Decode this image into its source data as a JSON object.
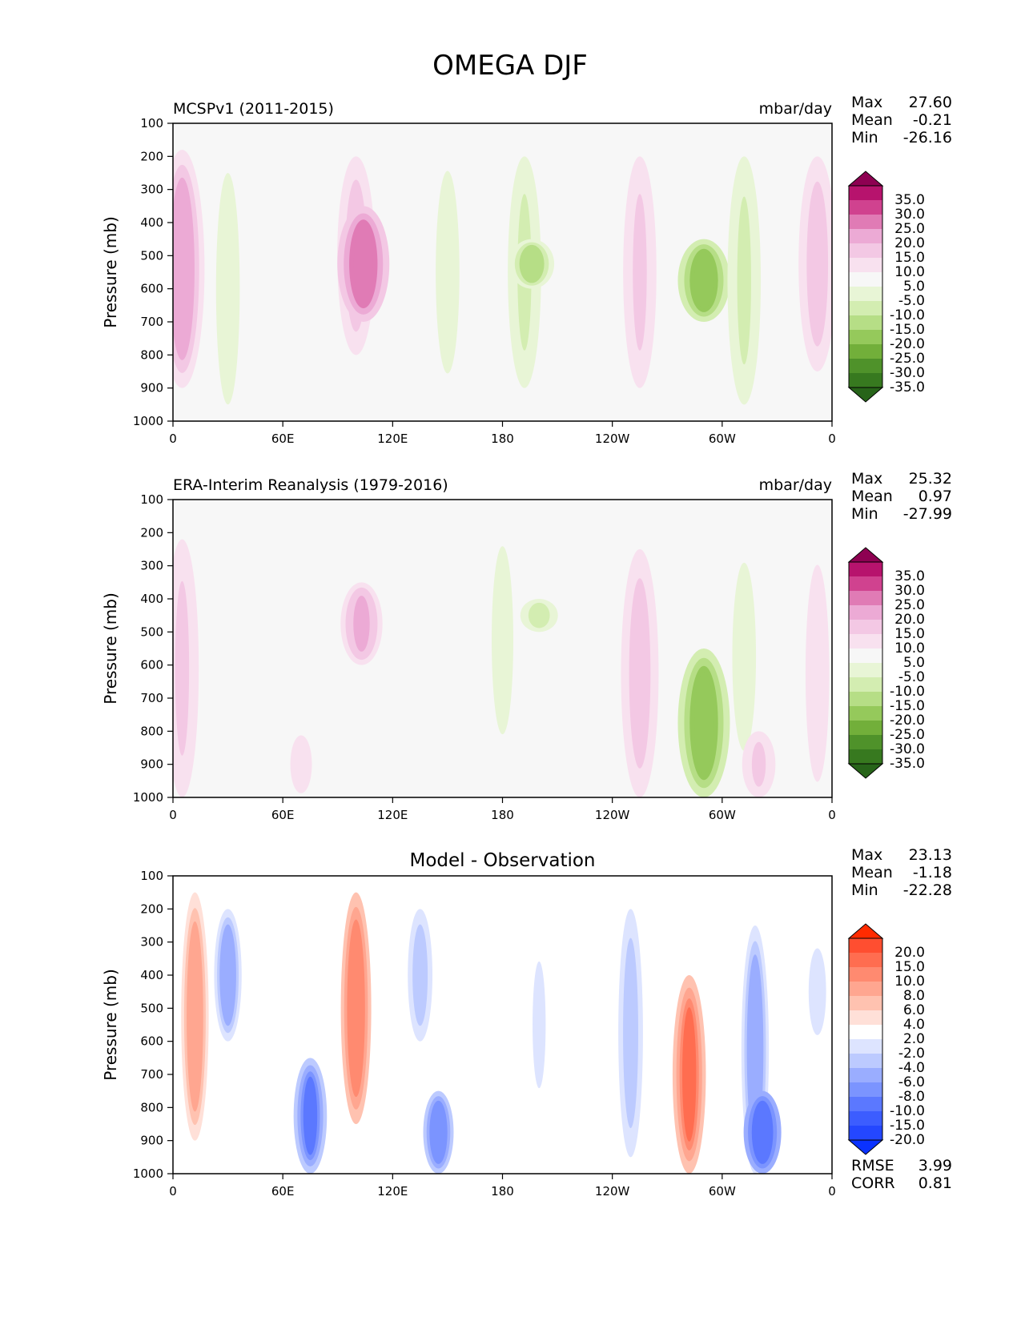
{
  "figure": {
    "title": "OMEGA DJF"
  },
  "chart_data": [
    {
      "type": "heatmap",
      "plot_kind": "filled-contour",
      "title_left": "MCSPv1 (2011-2015)",
      "title_right": "mbar/day",
      "ylabel": "Pressure (mb)",
      "x_ticks": [
        "0",
        "60E",
        "120E",
        "180",
        "120W",
        "60W",
        "0"
      ],
      "y_ticks": [
        "100",
        "200",
        "300",
        "400",
        "500",
        "600",
        "700",
        "800",
        "900",
        "1000"
      ],
      "ylim": [
        1000,
        100
      ],
      "xlim": [
        0,
        360
      ],
      "stats": [
        {
          "label": "Max",
          "value": "27.60"
        },
        {
          "label": "Mean",
          "value": "-0.21"
        },
        {
          "label": "Min",
          "value": "-26.16"
        }
      ],
      "colorbar": {
        "labels": [
          "35.0",
          "30.0",
          "25.0",
          "20.0",
          "15.0",
          "10.0",
          "5.0",
          "-5.0",
          "-10.0",
          "-15.0",
          "-20.0",
          "-25.0",
          "-30.0",
          "-35.0"
        ],
        "colors": [
          "#8e0152",
          "#b7136d",
          "#d0428f",
          "#e07bb5",
          "#ecaad5",
          "#f3c8e4",
          "#f8e1ef",
          "#f7f7f7",
          "#e8f5d6",
          "#d3edb1",
          "#b6de86",
          "#95c95b",
          "#72af3a",
          "#4f922a",
          "#37791f",
          "#276419"
        ],
        "extend": "both"
      },
      "features": [
        {
          "lon": 5,
          "p_top": 180,
          "p_bot": 900,
          "value": 20
        },
        {
          "lon": 30,
          "p_top": 200,
          "p_bot": 1000,
          "value": -10
        },
        {
          "lon": 100,
          "p_top": 200,
          "p_bot": 800,
          "value": 15
        },
        {
          "lon": 104,
          "p_top": 350,
          "p_bot": 700,
          "value": 25
        },
        {
          "lon": 150,
          "p_top": 200,
          "p_bot": 900,
          "value": -10
        },
        {
          "lon": 192,
          "p_top": 200,
          "p_bot": 900,
          "value": -12
        },
        {
          "lon": 196,
          "p_top": 450,
          "p_bot": 600,
          "value": -20
        },
        {
          "lon": 255,
          "p_top": 200,
          "p_bot": 900,
          "value": 12
        },
        {
          "lon": 290,
          "p_top": 450,
          "p_bot": 700,
          "value": -25
        },
        {
          "lon": 312,
          "p_top": 200,
          "p_bot": 950,
          "value": -12
        },
        {
          "lon": 352,
          "p_top": 200,
          "p_bot": 850,
          "value": 15
        }
      ]
    },
    {
      "type": "heatmap",
      "plot_kind": "filled-contour",
      "title_left": "ERA-Interim Reanalysis (1979-2016)",
      "title_right": "mbar/day",
      "ylabel": "Pressure (mb)",
      "x_ticks": [
        "0",
        "60E",
        "120E",
        "180",
        "120W",
        "60W",
        "0"
      ],
      "y_ticks": [
        "100",
        "200",
        "300",
        "400",
        "500",
        "600",
        "700",
        "800",
        "900",
        "1000"
      ],
      "ylim": [
        1000,
        100
      ],
      "xlim": [
        0,
        360
      ],
      "stats": [
        {
          "label": "Max",
          "value": "25.32"
        },
        {
          "label": "Mean",
          "value": "0.97"
        },
        {
          "label": "Min",
          "value": "-27.99"
        }
      ],
      "colorbar": {
        "labels": [
          "35.0",
          "30.0",
          "25.0",
          "20.0",
          "15.0",
          "10.0",
          "5.0",
          "-5.0",
          "-10.0",
          "-15.0",
          "-20.0",
          "-25.0",
          "-30.0",
          "-35.0"
        ],
        "colors": [
          "#8e0152",
          "#b7136d",
          "#d0428f",
          "#e07bb5",
          "#ecaad5",
          "#f3c8e4",
          "#f8e1ef",
          "#f7f7f7",
          "#e8f5d6",
          "#d3edb1",
          "#b6de86",
          "#95c95b",
          "#72af3a",
          "#4f922a",
          "#37791f",
          "#276419"
        ],
        "extend": "both"
      },
      "features": [
        {
          "lon": 5,
          "p_top": 220,
          "p_bot": 1000,
          "value": 12
        },
        {
          "lon": 70,
          "p_top": 800,
          "p_bot": 1000,
          "value": 8
        },
        {
          "lon": 103,
          "p_top": 350,
          "p_bot": 600,
          "value": 18
        },
        {
          "lon": 180,
          "p_top": 200,
          "p_bot": 850,
          "value": -8
        },
        {
          "lon": 200,
          "p_top": 400,
          "p_bot": 500,
          "value": -15
        },
        {
          "lon": 255,
          "p_top": 250,
          "p_bot": 1000,
          "value": 15
        },
        {
          "lon": 290,
          "p_top": 550,
          "p_bot": 1000,
          "value": -25
        },
        {
          "lon": 312,
          "p_top": 250,
          "p_bot": 900,
          "value": -10
        },
        {
          "lon": 320,
          "p_top": 800,
          "p_bot": 1000,
          "value": 12
        },
        {
          "lon": 352,
          "p_top": 250,
          "p_bot": 1000,
          "value": 10
        }
      ]
    },
    {
      "type": "heatmap",
      "plot_kind": "filled-contour",
      "title_center": "Model - Observation",
      "ylabel": "Pressure (mb)",
      "x_ticks": [
        "0",
        "60E",
        "120E",
        "180",
        "120W",
        "60W",
        "0"
      ],
      "y_ticks": [
        "100",
        "200",
        "300",
        "400",
        "500",
        "600",
        "700",
        "800",
        "900",
        "1000"
      ],
      "ylim": [
        1000,
        100
      ],
      "xlim": [
        0,
        360
      ],
      "stats": [
        {
          "label": "Max",
          "value": "23.13"
        },
        {
          "label": "Mean",
          "value": "-1.18"
        },
        {
          "label": "Min",
          "value": "-22.28"
        }
      ],
      "metrics": [
        {
          "label": "RMSE",
          "value": "3.99"
        },
        {
          "label": "CORR",
          "value": "0.81"
        }
      ],
      "colorbar": {
        "labels": [
          "20.0",
          "15.0",
          "10.0",
          "8.0",
          "6.0",
          "4.0",
          "2.0",
          "-2.0",
          "-4.0",
          "-6.0",
          "-8.0",
          "-10.0",
          "-15.0",
          "-20.0"
        ],
        "colors": [
          "#ff2b00",
          "#ff4e30",
          "#ff6d50",
          "#ff8a70",
          "#ffa690",
          "#ffc2b0",
          "#ffe0d8",
          "#ffffff",
          "#dde4ff",
          "#bccaff",
          "#9aadff",
          "#7b94ff",
          "#5b78ff",
          "#3c5dff",
          "#2447ff",
          "#0a32ff"
        ],
        "extend": "both"
      },
      "features": [
        {
          "lon": 12,
          "p_top": 150,
          "p_bot": 900,
          "value": 8
        },
        {
          "lon": 30,
          "p_top": 200,
          "p_bot": 600,
          "value": -8
        },
        {
          "lon": 75,
          "p_top": 650,
          "p_bot": 1000,
          "value": -12
        },
        {
          "lon": 100,
          "p_top": 150,
          "p_bot": 850,
          "value": 10
        },
        {
          "lon": 135,
          "p_top": 200,
          "p_bot": 600,
          "value": -6
        },
        {
          "lon": 145,
          "p_top": 750,
          "p_bot": 1000,
          "value": -10
        },
        {
          "lon": 200,
          "p_top": 300,
          "p_bot": 800,
          "value": -3
        },
        {
          "lon": 250,
          "p_top": 200,
          "p_bot": 950,
          "value": -6
        },
        {
          "lon": 282,
          "p_top": 400,
          "p_bot": 1000,
          "value": 12
        },
        {
          "lon": 318,
          "p_top": 250,
          "p_bot": 1000,
          "value": -8
        },
        {
          "lon": 322,
          "p_top": 750,
          "p_bot": 1000,
          "value": -15
        },
        {
          "lon": 352,
          "p_top": 300,
          "p_bot": 600,
          "value": -4
        }
      ]
    }
  ]
}
